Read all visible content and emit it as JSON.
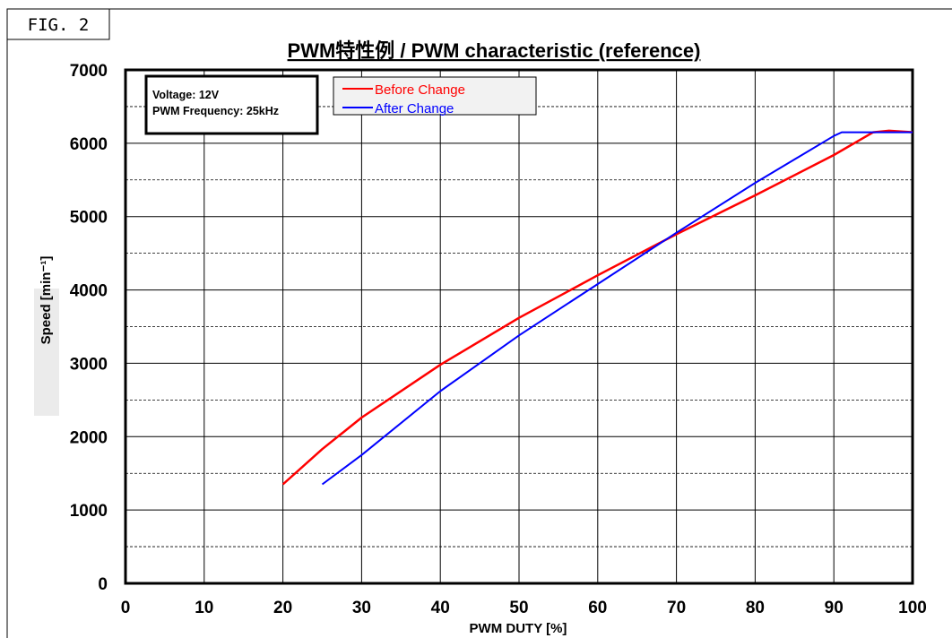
{
  "figure_label": "FIG. 2",
  "chart_data": {
    "type": "line",
    "title": "PWM特性例 / PWM characteristic (reference)",
    "xlabel": "PWM DUTY [%]",
    "ylabel": "Speed [min⁻¹]",
    "xlim": [
      0,
      100
    ],
    "ylim": [
      0,
      7000
    ],
    "x_ticks": [
      0,
      10,
      20,
      30,
      40,
      50,
      60,
      70,
      80,
      90,
      100
    ],
    "y_ticks": [
      0,
      1000,
      2000,
      3000,
      4000,
      5000,
      6000,
      7000
    ],
    "grid": "on (solid at major ticks, dashed at 500 min⁻¹ steps)",
    "legend_position": "top-left",
    "annotation": [
      "Voltage: 12V",
      "PWM Frequency: 25kHz"
    ],
    "series": [
      {
        "name": "Before Change",
        "color": "#ff0000",
        "points": [
          [
            20,
            1350
          ],
          [
            25,
            1830
          ],
          [
            30,
            2260
          ],
          [
            40,
            2980
          ],
          [
            50,
            3620
          ],
          [
            60,
            4200
          ],
          [
            70,
            4760
          ],
          [
            80,
            5290
          ],
          [
            90,
            5840
          ],
          [
            95,
            6150
          ],
          [
            97,
            6170
          ],
          [
            100,
            6150
          ]
        ]
      },
      {
        "name": "After Change",
        "color": "#0000ff",
        "points": [
          [
            25,
            1350
          ],
          [
            30,
            1750
          ],
          [
            40,
            2620
          ],
          [
            50,
            3380
          ],
          [
            60,
            4080
          ],
          [
            70,
            4780
          ],
          [
            80,
            5460
          ],
          [
            90,
            6100
          ],
          [
            91,
            6150
          ],
          [
            100,
            6150
          ]
        ]
      }
    ]
  }
}
